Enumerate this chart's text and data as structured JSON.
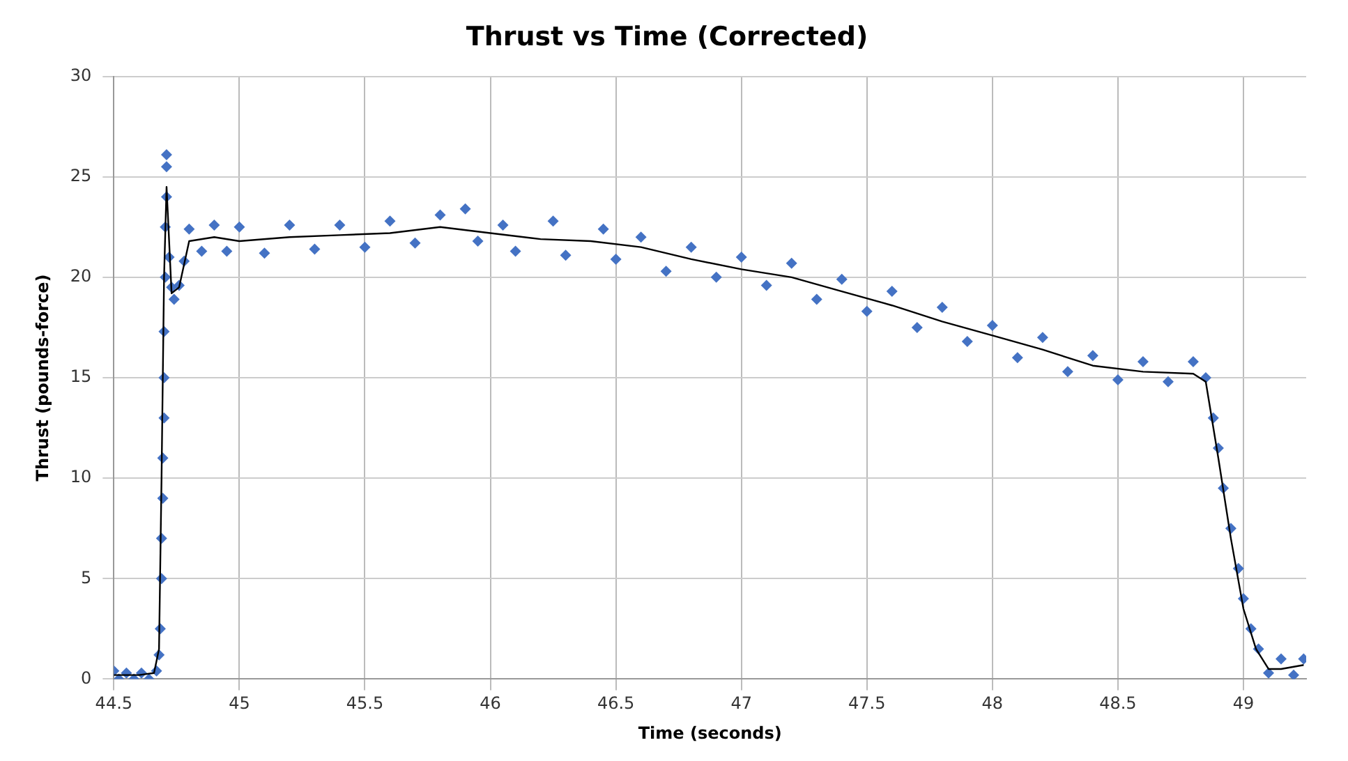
{
  "chart_data": {
    "type": "scatter",
    "title": "Thrust vs Time (Corrected)",
    "xlabel": "Time (seconds)",
    "ylabel": "Thrust (pounds-force)",
    "xlim": [
      44.5,
      49.25
    ],
    "xticks": [
      44.5,
      45,
      45.5,
      46,
      46.5,
      47,
      47.5,
      48,
      48.5,
      49
    ],
    "ylim": [
      0,
      30
    ],
    "yticks": [
      0,
      5,
      10,
      15,
      20,
      25,
      30
    ],
    "grid": true,
    "legend": false,
    "series": [
      {
        "marker": "diamond",
        "color": "#4472c4",
        "x": [
          44.5,
          44.52,
          44.55,
          44.58,
          44.61,
          44.64,
          44.67,
          44.68,
          44.685,
          44.69,
          44.69,
          44.695,
          44.695,
          44.7,
          44.7,
          44.7,
          44.705,
          44.705,
          44.71,
          44.71,
          44.71,
          44.72,
          44.73,
          44.74,
          44.76,
          44.78,
          44.8,
          44.85,
          44.9,
          44.95,
          45.0,
          45.1,
          45.2,
          45.3,
          45.4,
          45.5,
          45.6,
          45.7,
          45.8,
          45.9,
          45.95,
          46.05,
          46.1,
          46.25,
          46.3,
          46.45,
          46.5,
          46.6,
          46.7,
          46.8,
          46.9,
          47.0,
          47.1,
          47.2,
          47.3,
          47.4,
          47.5,
          47.6,
          47.7,
          47.8,
          47.9,
          48.0,
          48.1,
          48.2,
          48.3,
          48.4,
          48.5,
          48.6,
          48.7,
          48.8,
          48.85,
          48.88,
          48.9,
          48.92,
          48.95,
          48.98,
          49.0,
          49.03,
          49.06,
          49.1,
          49.15,
          49.2,
          49.24
        ],
        "values": [
          0.4,
          0.0,
          0.3,
          0.0,
          0.3,
          0.0,
          0.4,
          1.2,
          2.5,
          5,
          7,
          9,
          11,
          13,
          15,
          17.3,
          20,
          22.5,
          24,
          25.5,
          26.1,
          21,
          19.5,
          18.9,
          19.6,
          20.8,
          22.4,
          21.3,
          22.6,
          21.3,
          22.5,
          21.2,
          22.6,
          21.4,
          22.6,
          21.5,
          22.8,
          21.7,
          23.1,
          23.4,
          21.8,
          22.6,
          21.3,
          22.8,
          21.1,
          22.4,
          20.9,
          22.0,
          20.3,
          21.5,
          20.0,
          21.0,
          19.6,
          20.7,
          18.9,
          19.9,
          18.3,
          19.3,
          17.5,
          18.5,
          16.8,
          17.6,
          16.0,
          17.0,
          15.3,
          16.1,
          14.9,
          15.8,
          14.8,
          15.8,
          15.0,
          13,
          11.5,
          9.5,
          7.5,
          5.5,
          4,
          2.5,
          1.5,
          0.3,
          1.0,
          0.2,
          1.0
        ]
      },
      {
        "type": "line",
        "marker": "none",
        "color": "#000000",
        "x": [
          44.5,
          44.6,
          44.66,
          44.68,
          44.69,
          44.7,
          44.71,
          44.73,
          44.76,
          44.8,
          44.9,
          45.0,
          45.2,
          45.4,
          45.6,
          45.8,
          46.0,
          46.2,
          46.4,
          46.6,
          46.8,
          47.0,
          47.2,
          47.4,
          47.6,
          47.8,
          48.0,
          48.2,
          48.4,
          48.6,
          48.8,
          48.85,
          48.9,
          48.95,
          49.0,
          49.05,
          49.1,
          49.15,
          49.24
        ],
        "values": [
          0.2,
          0.2,
          0.3,
          1.5,
          10,
          20,
          24.5,
          19.2,
          19.5,
          21.8,
          22.0,
          21.8,
          22.0,
          22.1,
          22.2,
          22.5,
          22.2,
          21.9,
          21.8,
          21.5,
          20.9,
          20.4,
          20.0,
          19.3,
          18.6,
          17.8,
          17.1,
          16.4,
          15.6,
          15.3,
          15.2,
          14.8,
          11,
          7,
          3.5,
          1.5,
          0.5,
          0.5,
          0.7
        ]
      }
    ]
  }
}
